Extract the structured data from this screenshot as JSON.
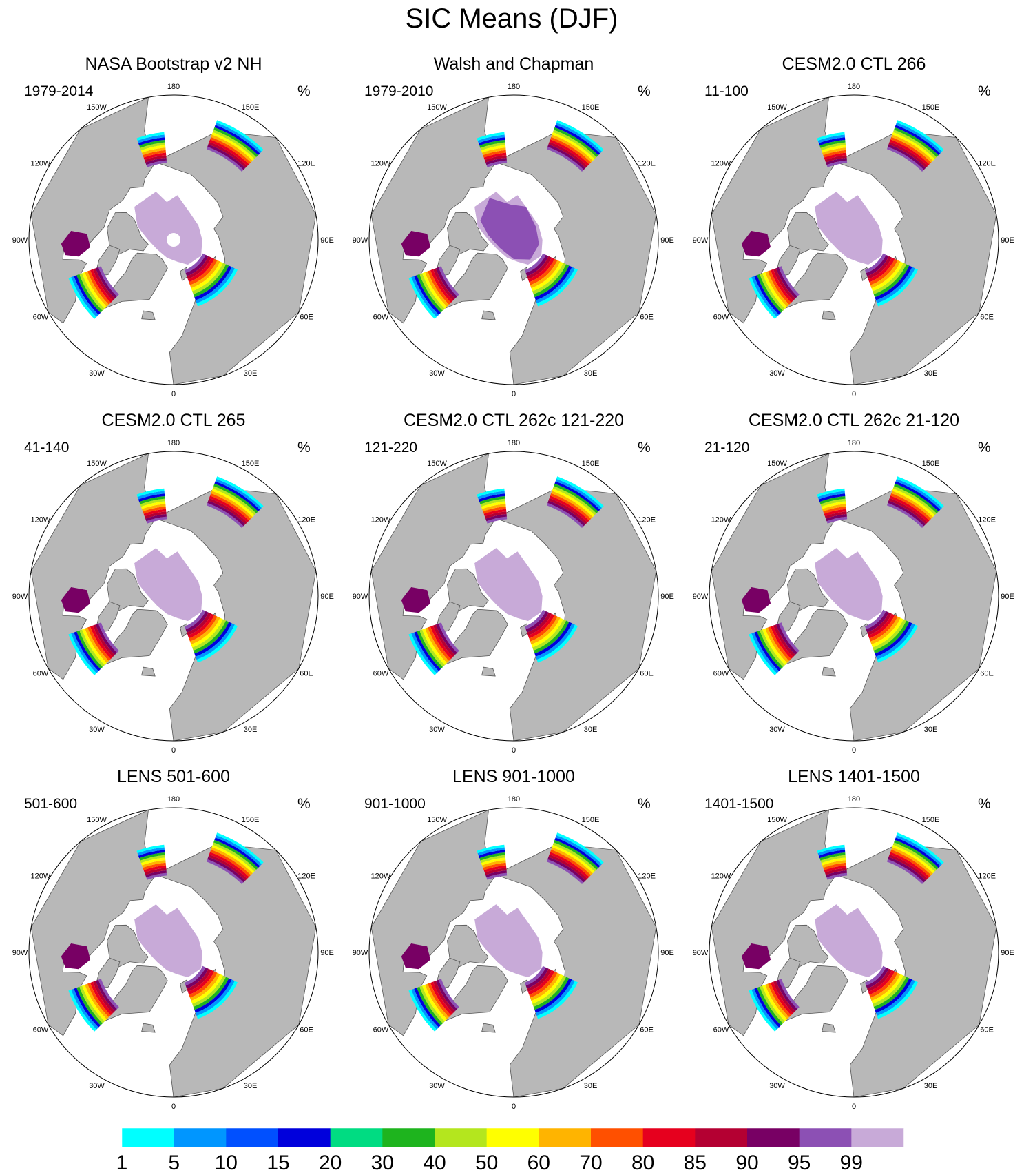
{
  "title": "SIC Means (DJF)",
  "lon_labels": [
    "180",
    "150E",
    "120E",
    "90E",
    "60E",
    "30E",
    "0",
    "30W",
    "60W",
    "90W",
    "120W",
    "150W"
  ],
  "lon_degrees": [
    180,
    150,
    120,
    90,
    60,
    30,
    0,
    -30,
    -60,
    -90,
    -120,
    -150
  ],
  "colors": {
    "land": "#b8b8b8",
    "ocean": "#ffffff",
    "outline": "#555555"
  },
  "panels": [
    {
      "title": "NASA Bootstrap v2 NH",
      "left_label": "1979-2014",
      "right_label": "%",
      "pole_hole": true
    },
    {
      "title": "Walsh and Chapman",
      "left_label": "1979-2010",
      "right_label": "%",
      "pole_hole": false
    },
    {
      "title": "CESM2.0 CTL 266",
      "left_label": "11-100",
      "right_label": "%",
      "pole_hole": false
    },
    {
      "title": "CESM2.0 CTL 265",
      "left_label": "41-140",
      "right_label": "%",
      "pole_hole": false
    },
    {
      "title": "CESM2.0 CTL 262c 121-220",
      "left_label": "121-220",
      "right_label": "%",
      "pole_hole": false
    },
    {
      "title": "CESM2.0 CTL 262c 21-120",
      "left_label": "21-120",
      "right_label": "%",
      "pole_hole": false
    },
    {
      "title": "LENS 501-600",
      "left_label": "501-600",
      "right_label": "%",
      "pole_hole": false
    },
    {
      "title": "LENS 901-1000",
      "left_label": "901-1000",
      "right_label": "%",
      "pole_hole": false
    },
    {
      "title": "LENS 1401-1500",
      "left_label": "1401-1500",
      "right_label": "%",
      "pole_hole": false
    }
  ],
  "colorbar": {
    "labels": [
      "1",
      "5",
      "10",
      "15",
      "20",
      "30",
      "40",
      "50",
      "60",
      "70",
      "80",
      "85",
      "90",
      "95",
      "99"
    ],
    "colors": [
      "#00ffff",
      "#0096ff",
      "#0050ff",
      "#0000dc",
      "#00dc82",
      "#1eb41e",
      "#b4e61e",
      "#ffff00",
      "#ffb400",
      "#ff5000",
      "#e6001e",
      "#b40032",
      "#780064",
      "#8c50b4",
      "#c8aad8"
    ]
  }
}
